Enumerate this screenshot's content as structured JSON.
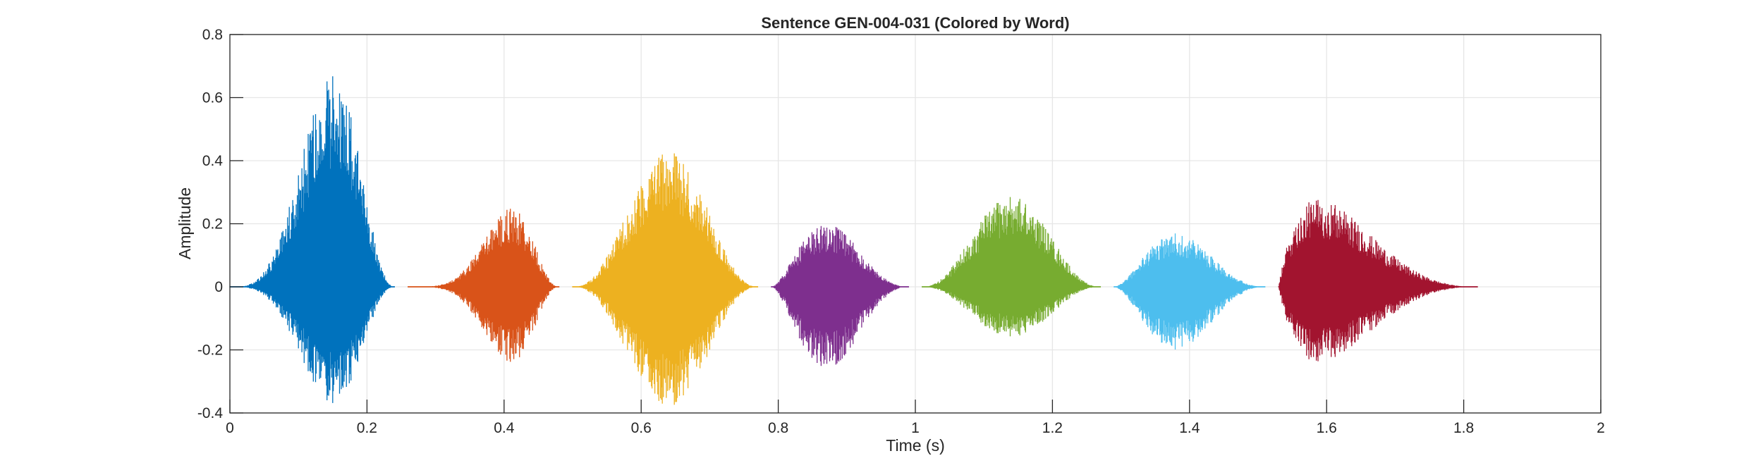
{
  "chart_data": {
    "type": "line",
    "title": "Sentence GEN-004-031 (Colored by Word)",
    "xlabel": "Time (s)",
    "ylabel": "Amplitude",
    "xlim": [
      0,
      2
    ],
    "ylim": [
      -0.4,
      0.8
    ],
    "x_ticks": [
      0,
      0.2,
      0.4,
      0.6,
      0.8,
      1,
      1.2,
      1.4,
      1.6,
      1.8,
      2
    ],
    "x_tick_labels": [
      "0",
      "0.2",
      "0.4",
      "0.6",
      "0.8",
      "1",
      "1.2",
      "1.4",
      "1.6",
      "1.8",
      "2"
    ],
    "y_ticks": [
      -0.4,
      -0.2,
      0,
      0.2,
      0.4,
      0.6,
      0.8
    ],
    "y_tick_labels": [
      "-0.4",
      "-0.2",
      "0",
      "0.2",
      "0.4",
      "0.6",
      "0.8"
    ],
    "grid": true,
    "legend": "none",
    "series": [
      {
        "color": "#0072BD",
        "start": 0.0,
        "end": 0.24,
        "peak_time": 0.15,
        "peak_max": 0.67,
        "peak_min": -0.37
      },
      {
        "color": "#D95319",
        "start": 0.26,
        "end": 0.48,
        "peak_time": 0.41,
        "peak_max": 0.25,
        "peak_min": -0.24
      },
      {
        "color": "#EDB120",
        "start": 0.5,
        "end": 0.77,
        "peak_time": 0.64,
        "peak_max": 0.43,
        "peak_min": -0.38
      },
      {
        "color": "#7E2F8E",
        "start": 0.79,
        "end": 0.99,
        "peak_time": 0.87,
        "peak_max": 0.2,
        "peak_min": -0.26
      },
      {
        "color": "#77AC30",
        "start": 1.01,
        "end": 1.27,
        "peak_time": 1.14,
        "peak_max": 0.29,
        "peak_min": -0.16
      },
      {
        "color": "#4DBEEE",
        "start": 1.29,
        "end": 1.51,
        "peak_time": 1.38,
        "peak_max": 0.17,
        "peak_min": -0.2
      },
      {
        "color": "#A2142F",
        "start": 1.53,
        "end": 1.82,
        "peak_time": 1.59,
        "peak_max": 0.28,
        "peak_min": -0.24
      }
    ]
  }
}
